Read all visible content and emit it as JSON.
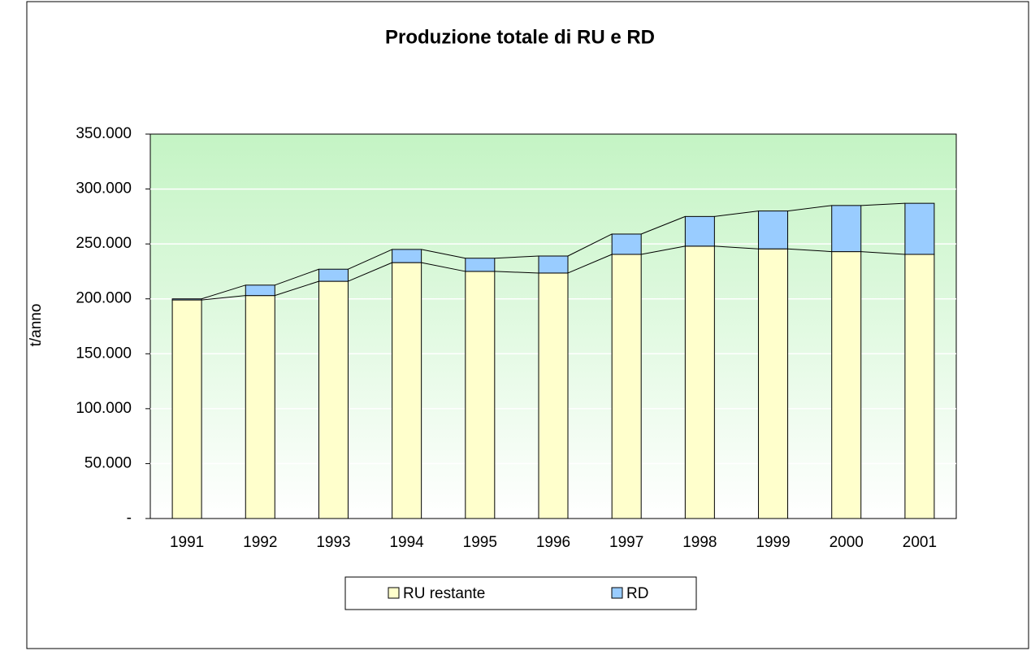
{
  "chart_data": {
    "type": "stacked_bar",
    "title": "Produzione totale di RU e RD",
    "y_label": "t/anno",
    "categories": [
      "1991",
      "1992",
      "1993",
      "1994",
      "1995",
      "1996",
      "1997",
      "1998",
      "1999",
      "2000",
      "2001"
    ],
    "series": [
      {
        "name": "RU restante",
        "color": "#ffffcc",
        "values": [
          199000,
          203000,
          216000,
          233000,
          225000,
          223500,
          240500,
          248000,
          245500,
          243000,
          240500
        ]
      },
      {
        "name": "RD",
        "color": "#99ccff",
        "values": [
          1000,
          9500,
          11000,
          12000,
          12000,
          15500,
          18500,
          27000,
          34500,
          42000,
          46500
        ]
      }
    ],
    "ylim": [
      0,
      350000
    ],
    "yticks": [
      {
        "value": 0,
        "label": "-"
      },
      {
        "value": 50000,
        "label": "50.000"
      },
      {
        "value": 100000,
        "label": "100.000"
      },
      {
        "value": 150000,
        "label": "150.000"
      },
      {
        "value": 200000,
        "label": "200.000"
      },
      {
        "value": 250000,
        "label": "250.000"
      },
      {
        "value": 300000,
        "label": "300.000"
      },
      {
        "value": 350000,
        "label": "350.000"
      }
    ],
    "grid": true
  }
}
